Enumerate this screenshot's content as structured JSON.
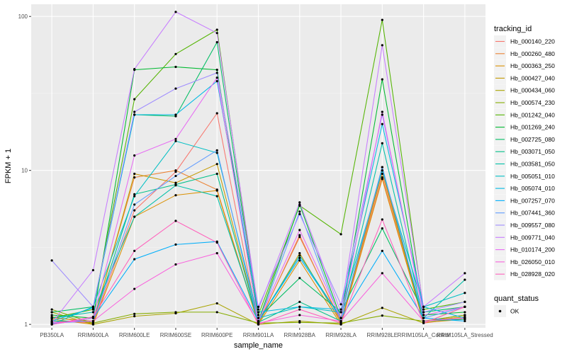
{
  "chart_data": {
    "type": "line",
    "title": "",
    "xlabel": "sample_name",
    "ylabel": "FPKM + 1",
    "y_scale": "log10",
    "ylim": [
      0.95,
      120
    ],
    "y_ticks": [
      1,
      10,
      100
    ],
    "y_tick_labels": [
      "1",
      "10",
      "100"
    ],
    "grid": true,
    "background": "#ebebeb",
    "legend_position": "right",
    "categories": [
      "PB350LA",
      "RRIM600LA",
      "RRIM600LE",
      "RRIM600SE",
      "RRIM600PE",
      "RRIM901LA",
      "RRIM928BA",
      "RRIM928LA",
      "RRIM928LE",
      "RRIM105LA_Control",
      "RRIM105LA_Stressed"
    ],
    "legend": {
      "title": "tracking_id",
      "shape_title": "quant_status",
      "shape_entry": "OK"
    },
    "series": [
      {
        "name": "Hb_000140_220",
        "color": "#F8766D",
        "values": [
          1.05,
          1.02,
          5.5,
          9.8,
          23.5,
          1.0,
          3.8,
          1.02,
          9.0,
          1.02,
          1.1
        ]
      },
      {
        "name": "Hb_000260_480",
        "color": "#EB8335",
        "values": [
          1.1,
          1.05,
          9.0,
          10.0,
          7.5,
          1.02,
          3.7,
          1.05,
          9.5,
          1.05,
          1.15
        ]
      },
      {
        "name": "Hb_000363_250",
        "color": "#DA8F00",
        "values": [
          1.08,
          1.0,
          5.0,
          6.9,
          7.4,
          1.0,
          2.6,
          1.0,
          8.8,
          1.03,
          1.08
        ]
      },
      {
        "name": "Hb_000427_040",
        "color": "#C49A00",
        "values": [
          1.12,
          1.02,
          9.5,
          8.3,
          11.0,
          1.02,
          2.9,
          1.03,
          10.0,
          1.05,
          1.12
        ]
      },
      {
        "name": "Hb_000434_060",
        "color": "#A9A400",
        "values": [
          1.2,
          1.0,
          1.13,
          1.18,
          1.37,
          1.0,
          1.05,
          1.0,
          1.28,
          1.02,
          1.3
        ]
      },
      {
        "name": "Hb_000574_230",
        "color": "#86AC00",
        "values": [
          1.25,
          1.02,
          1.17,
          1.2,
          1.2,
          1.02,
          1.03,
          1.02,
          1.14,
          1.05,
          1.15
        ]
      },
      {
        "name": "Hb_001242_040",
        "color": "#53B400",
        "values": [
          1.1,
          1.25,
          29.0,
          57.0,
          82.0,
          1.15,
          5.9,
          3.85,
          95.0,
          1.25,
          1.4
        ]
      },
      {
        "name": "Hb_001269_240",
        "color": "#00B931",
        "values": [
          1.15,
          1.1,
          45.0,
          47.0,
          45.0,
          1.05,
          6.0,
          1.1,
          39.0,
          1.15,
          1.2
        ]
      },
      {
        "name": "Hb_002725_080",
        "color": "#00BD63",
        "values": [
          1.2,
          1.3,
          23.0,
          22.5,
          68.0,
          1.1,
          2.0,
          1.2,
          4.2,
          1.2,
          1.3
        ]
      },
      {
        "name": "Hb_003071_050",
        "color": "#00C088",
        "values": [
          1.05,
          1.05,
          7.0,
          8.1,
          9.5,
          1.03,
          1.4,
          1.05,
          10.5,
          1.05,
          1.08
        ]
      },
      {
        "name": "Hb_003581_050",
        "color": "#00C0A9",
        "values": [
          1.1,
          1.2,
          5.0,
          8.0,
          6.8,
          1.05,
          2.8,
          1.1,
          15.0,
          1.1,
          1.95
        ]
      },
      {
        "name": "Hb_005051_010",
        "color": "#00BFC4",
        "values": [
          1.0,
          1.3,
          6.8,
          15.5,
          13.0,
          1.1,
          1.3,
          1.2,
          10.0,
          1.3,
          1.6
        ]
      },
      {
        "name": "Hb_005074_010",
        "color": "#00B9E3",
        "values": [
          1.05,
          1.28,
          23.0,
          23.0,
          38.0,
          1.2,
          1.3,
          1.25,
          20.0,
          1.3,
          1.1
        ]
      },
      {
        "name": "Hb_007257_070",
        "color": "#00AEFA",
        "values": [
          1.0,
          1.1,
          2.65,
          3.3,
          3.45,
          1.05,
          2.7,
          1.1,
          3.0,
          1.1,
          1.05
        ]
      },
      {
        "name": "Hb_007441_360",
        "color": "#619CFF",
        "values": [
          1.02,
          1.05,
          6.0,
          9.2,
          13.5,
          1.02,
          5.4,
          1.05,
          10.5,
          1.1,
          1.3
        ]
      },
      {
        "name": "Hb_009557_080",
        "color": "#9F8CFF",
        "values": [
          2.6,
          1.3,
          24.0,
          34.0,
          43.0,
          1.3,
          5.2,
          1.35,
          23.0,
          1.2,
          1.4
        ]
      },
      {
        "name": "Hb_009771_040",
        "color": "#C77CFF",
        "values": [
          1.02,
          2.25,
          45.5,
          107.0,
          78.0,
          1.25,
          6.2,
          1.2,
          65.0,
          1.3,
          2.15
        ]
      },
      {
        "name": "Hb_010174_200",
        "color": "#E76BF3",
        "values": [
          1.0,
          1.1,
          12.5,
          16.0,
          40.0,
          1.05,
          4.1,
          1.1,
          24.0,
          1.15,
          1.3
        ]
      },
      {
        "name": "Hb_026050_010",
        "color": "#F962DD",
        "values": [
          1.03,
          1.05,
          1.7,
          2.45,
          2.9,
          1.02,
          1.15,
          1.05,
          2.15,
          1.05,
          1.1
        ]
      },
      {
        "name": "Hb_028928_020",
        "color": "#FF62BC",
        "values": [
          1.0,
          1.12,
          3.0,
          4.7,
          3.4,
          1.0,
          1.25,
          1.02,
          4.8,
          1.02,
          1.3
        ]
      }
    ]
  }
}
